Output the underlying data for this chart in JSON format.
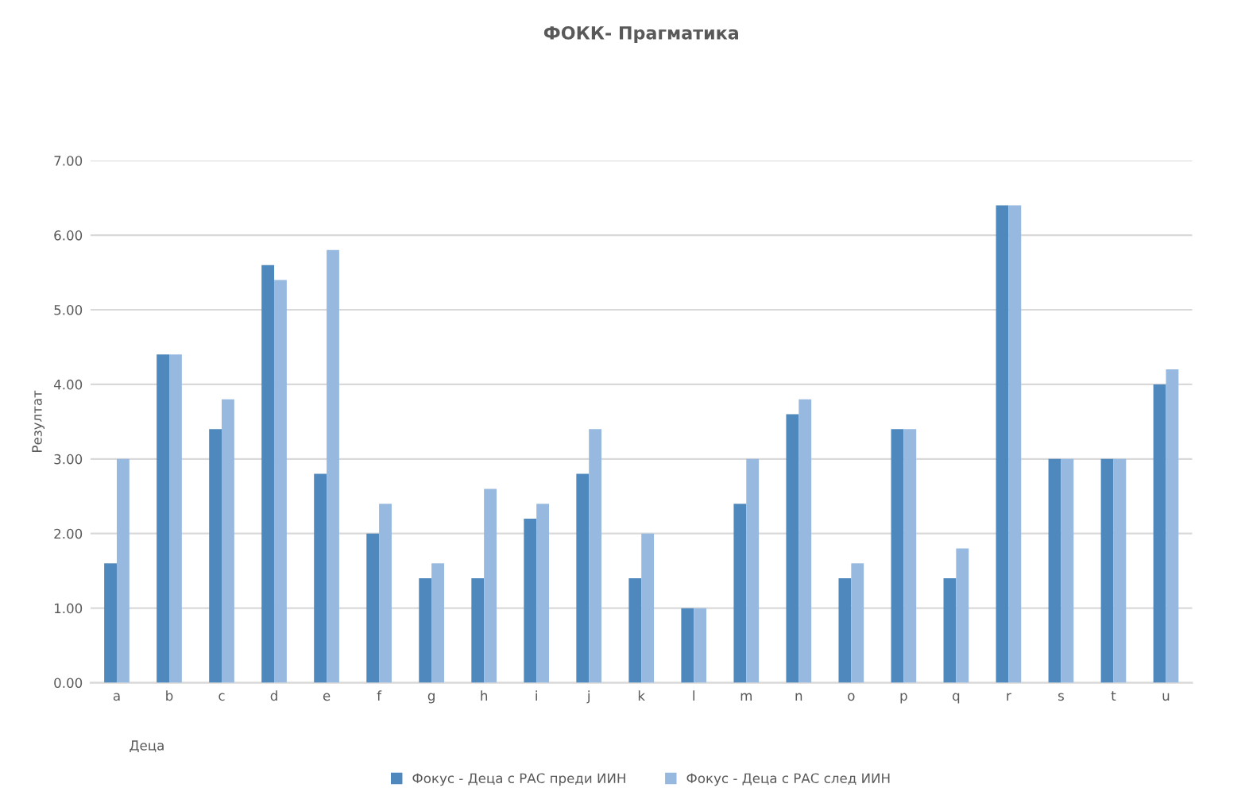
{
  "chart_data": {
    "type": "bar",
    "title": "ФОКК- Прагматика",
    "xlabel": "Деца",
    "ylabel": "Резултат",
    "categories": [
      "a",
      "b",
      "c",
      "d",
      "e",
      "f",
      "g",
      "h",
      "i",
      "j",
      "k",
      "l",
      "m",
      "n",
      "o",
      "p",
      "q",
      "r",
      "s",
      "t",
      "u"
    ],
    "series": [
      {
        "name": "Фокус - Деца с РАС преди ИИН",
        "color": "#4f88bc",
        "values": [
          1.6,
          4.4,
          3.4,
          5.6,
          2.8,
          2.0,
          1.4,
          1.4,
          2.2,
          2.8,
          1.4,
          1.0,
          2.4,
          3.6,
          1.4,
          3.4,
          1.4,
          6.4,
          3.0,
          3.0,
          4.0
        ]
      },
      {
        "name": "Фокус - Деца с РАС след ИИН",
        "color": "#97b9e0",
        "values": [
          3.0,
          4.4,
          3.8,
          5.4,
          5.8,
          2.4,
          1.6,
          2.6,
          2.4,
          3.4,
          2.0,
          1.0,
          3.0,
          3.8,
          1.6,
          3.4,
          1.8,
          6.4,
          3.0,
          3.0,
          4.2
        ]
      }
    ],
    "ylim": [
      0,
      7
    ],
    "yticks": [
      {
        "value": 0,
        "label": "0.00"
      },
      {
        "value": 1,
        "label": "1.00"
      },
      {
        "value": 2,
        "label": "2.00"
      },
      {
        "value": 3,
        "label": "3.00"
      },
      {
        "value": 4,
        "label": "4.00"
      },
      {
        "value": 5,
        "label": "5.00"
      },
      {
        "value": 6,
        "label": "6.00"
      },
      {
        "value": 7,
        "label": "7.00"
      }
    ],
    "grid": "y",
    "legend": "bottom"
  }
}
